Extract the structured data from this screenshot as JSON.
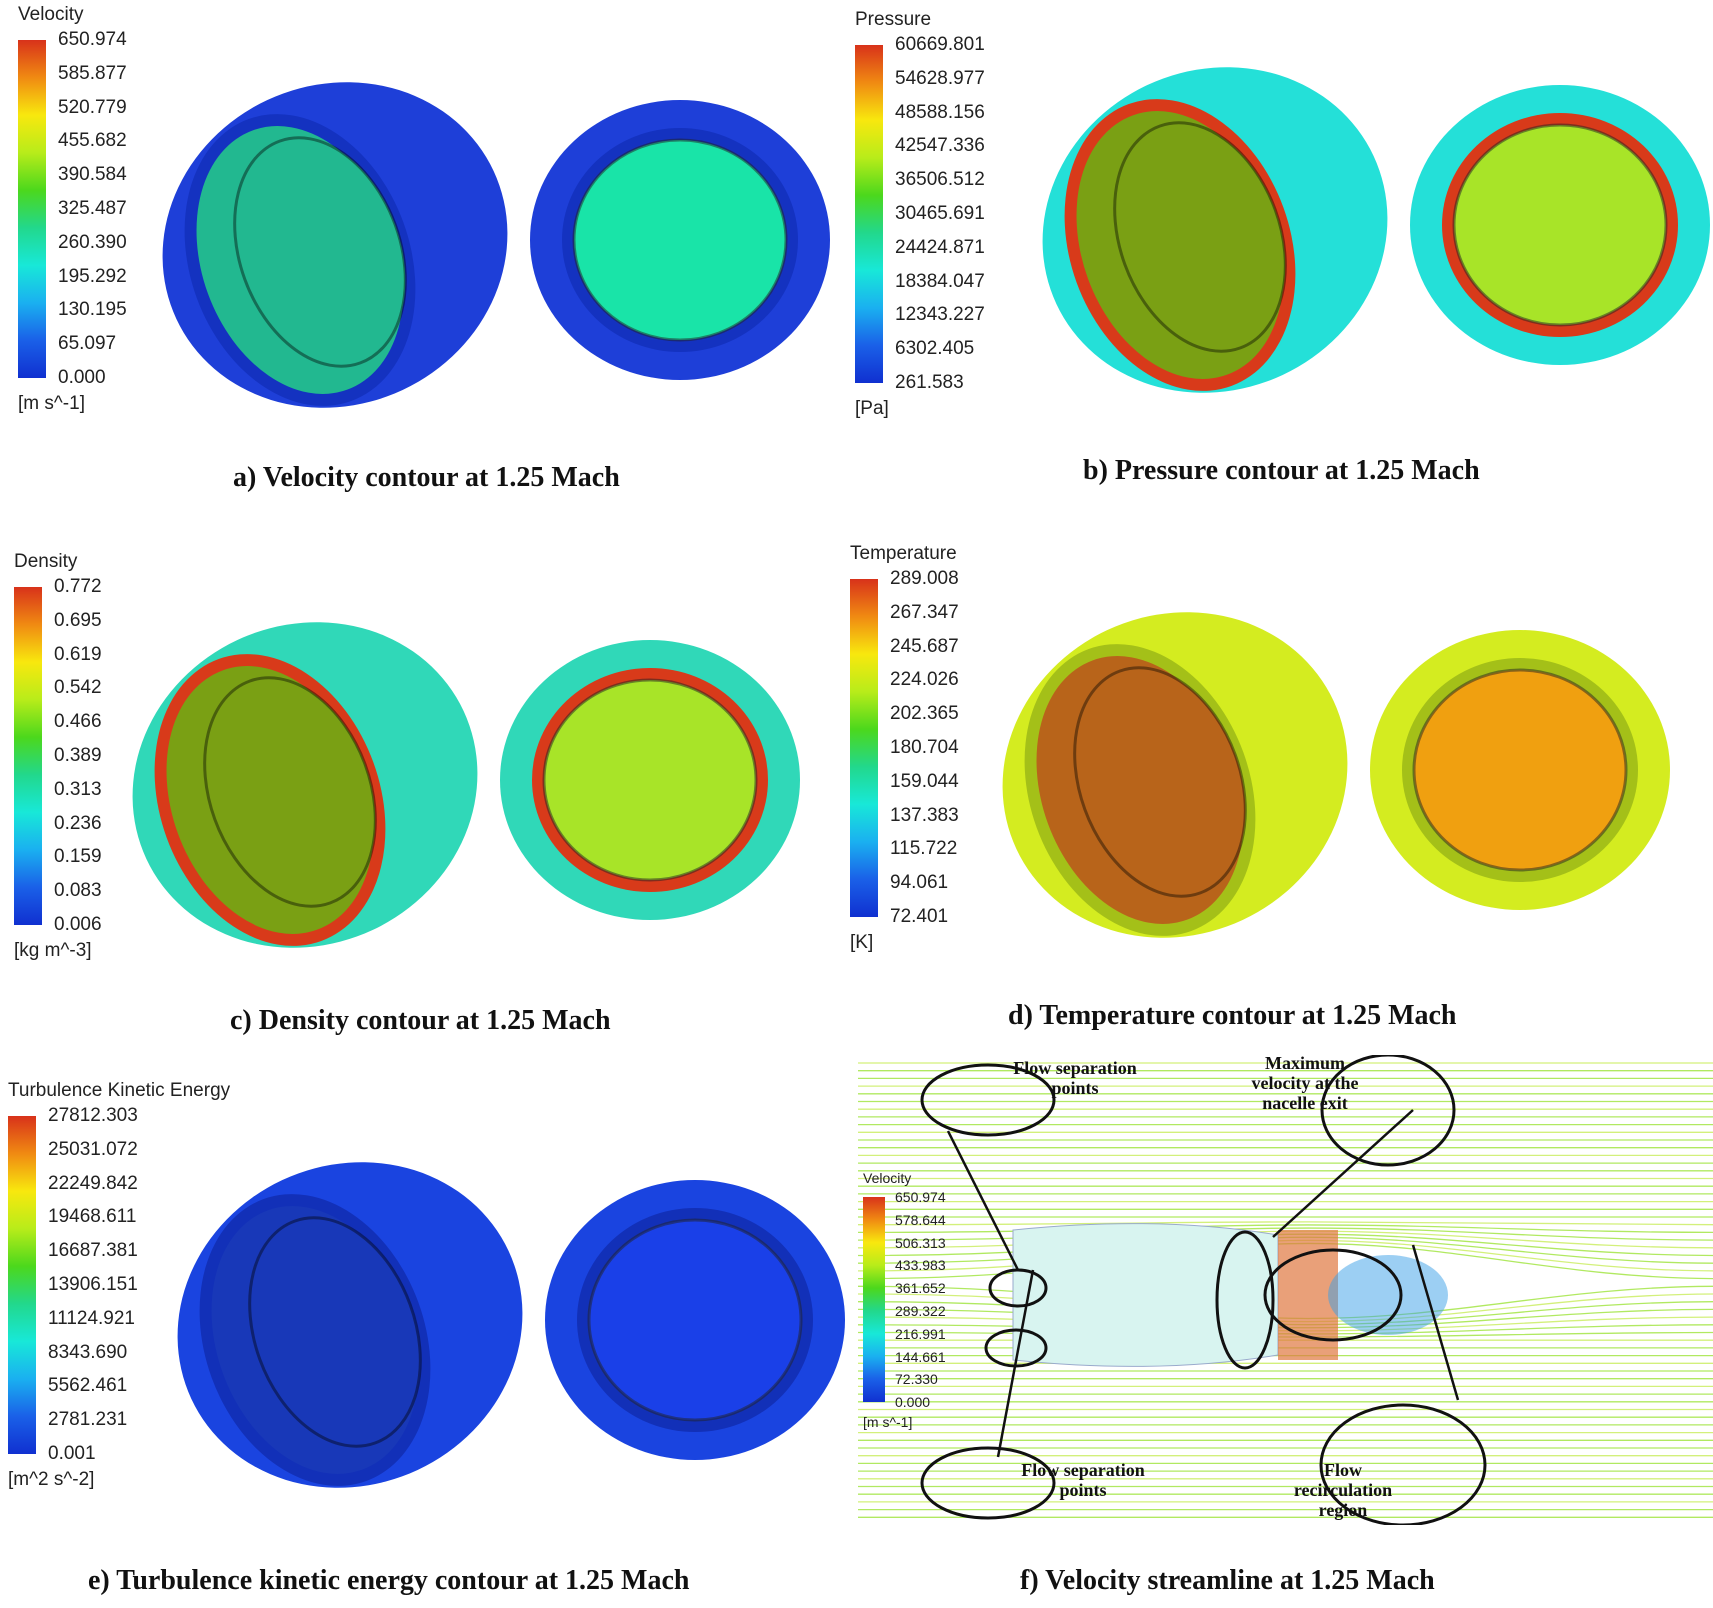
{
  "panels": [
    {
      "id": "a",
      "legend_title": "Velocity",
      "unit": "[m s^-1]",
      "values": [
        "650.974",
        "585.877",
        "520.779",
        "455.682",
        "390.584",
        "325.487",
        "260.390",
        "195.292",
        "130.195",
        "65.097",
        "0.000"
      ],
      "caption": "a)  Velocity contour at 1.25 Mach",
      "colors": {
        "body": "#1e3fd8",
        "rim": "#1432c0",
        "inner": "#22b890",
        "exit": "#19e4a8"
      }
    },
    {
      "id": "b",
      "legend_title": "Pressure",
      "unit": "[Pa]",
      "values": [
        "60669.801",
        "54628.977",
        "48588.156",
        "42547.336",
        "36506.512",
        "30465.691",
        "24424.871",
        "18384.047",
        "12343.227",
        "6302.405",
        "261.583"
      ],
      "caption": "b)  Pressure contour at 1.25 Mach",
      "colors": {
        "body": "#24e0d8",
        "rim": "#d83a1a",
        "inner": "#7aa014",
        "exit": "#a8e428"
      }
    },
    {
      "id": "c",
      "legend_title": "Density",
      "unit": "[kg m^-3]",
      "values": [
        "0.772",
        "0.695",
        "0.619",
        "0.542",
        "0.466",
        "0.389",
        "0.313",
        "0.236",
        "0.159",
        "0.083",
        "0.006"
      ],
      "caption": "c)  Density contour at 1.25 Mach",
      "colors": {
        "body": "#30d8b8",
        "rim": "#d83a1a",
        "inner": "#7aa014",
        "exit": "#a8e428"
      }
    },
    {
      "id": "d",
      "legend_title": "Temperature",
      "unit": "[K]",
      "values": [
        "289.008",
        "267.347",
        "245.687",
        "224.026",
        "202.365",
        "180.704",
        "159.044",
        "137.383",
        "115.722",
        "94.061",
        "72.401"
      ],
      "caption": "d)  Temperature contour at 1.25 Mach",
      "colors": {
        "body": "#d4ec20",
        "rim": "#a4c018",
        "inner": "#b8641a",
        "exit": "#f0a010"
      }
    },
    {
      "id": "e",
      "legend_title": "Turbulence Kinetic Energy",
      "unit": "[m^2 s^-2]",
      "values": [
        "27812.303",
        "25031.072",
        "22249.842",
        "19468.611",
        "16687.381",
        "13906.151",
        "11124.921",
        "8343.690",
        "5562.461",
        "2781.231",
        "0.001"
      ],
      "caption": "e)  Turbulence kinetic energy contour at 1.25 Mach",
      "colors": {
        "body": "#1a44e0",
        "rim": "#1230b8",
        "inner": "#1838b8",
        "exit": "#1a40e8"
      }
    }
  ],
  "streamline": {
    "legend_title": "Velocity",
    "unit": "[m s^-1]",
    "values": [
      "650.974",
      "578.644",
      "506.313",
      "433.983",
      "361.652",
      "289.322",
      "216.991",
      "144.661",
      "72.330",
      "0.000"
    ],
    "annotations": {
      "sep_top": "Flow separation points",
      "max_vel": "Maximum velocity at the nacelle exit",
      "sep_bottom": "Flow separation points",
      "recirc": "Flow recirculation region"
    },
    "caption": "f)  Velocity streamline at 1.25 Mach"
  },
  "colormap": [
    "#d8321a",
    "#f08a12",
    "#f8e80e",
    "#b8ec1a",
    "#4cd81c",
    "#22d88c",
    "#18e8d8",
    "#1ab0f0",
    "#1a60e8",
    "#1030d0"
  ]
}
